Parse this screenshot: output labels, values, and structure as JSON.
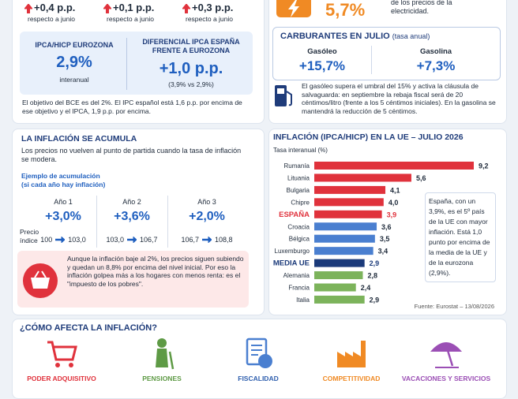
{
  "top_changes": [
    {
      "value": "+0,4 p.p.",
      "label": "respecto a junio"
    },
    {
      "value": "+0,1 p.p.",
      "label": "respecto a junio"
    },
    {
      "value": "+0,3 p.p.",
      "label": "respecto a junio"
    }
  ],
  "electricity": {
    "value": "5,7%",
    "label": "de los precios de la electricidad."
  },
  "eurozone": {
    "title": "IPCA/HICP EUROZONA",
    "value": "2,9%",
    "label": "interanual"
  },
  "differential": {
    "title": "DIFERENCIAL IPCA ESPAÑA FRENTE A EUROZONA",
    "value": "+1,0 p.p.",
    "label": "(3,9% vs 2,9%)"
  },
  "ecb_note": "El objetivo del BCE es del 2%. El IPC español está 1,6 p.p. por encima de ese objetivo y el IPCA, 1,9 p.p. por encima.",
  "fuel": {
    "title": "CARBURANTES EN JULIO",
    "subtitle": "(tasa anual)",
    "items": [
      {
        "name": "Gasóleo",
        "value": "+15,7%"
      },
      {
        "name": "Gasolina",
        "value": "+7,3%"
      }
    ],
    "note": "El gasóleo supera el umbral del 15% y activa la cláusula de salvaguarda: en septiembre la rebaja fiscal será de 20 céntimos/litro (frente a los 5 céntimos iniciales). En la gasolina se mantendrá la reducción de 5 céntimos."
  },
  "accumulation": {
    "title": "LA INFLACIÓN SE ACUMULA",
    "intro": "Los precios no vuelven al punto de partida cuando la tasa de inflación se modera.",
    "example_title": "Ejemplo de acumulación",
    "example_subtitle": "(si cada año hay inflación)",
    "row_label": "Precio índice",
    "years": [
      {
        "name": "Año 1",
        "rate": "+3,0%",
        "from": "100",
        "to": "103,0"
      },
      {
        "name": "Año 2",
        "rate": "+3,6%",
        "from": "103,0",
        "to": "106,7"
      },
      {
        "name": "Año 3",
        "rate": "+2,0%",
        "from": "106,7",
        "to": "108,8"
      }
    ],
    "warning": "Aunque la inflación baje al 2%, los precios siguen subiendo y quedan un 8,8% por encima del nivel inicial. Por eso la inflación golpea más a los hogares con menos renta: es el \"impuesto de los pobres\"."
  },
  "chart_data": {
    "type": "bar",
    "orientation": "horizontal",
    "title": "INFLACIÓN (IPCA/HICP) EN LA UE – JULIO 2026",
    "subtitle": "Tasa interanual (%)",
    "categories": [
      "Rumanía",
      "Lituania",
      "Bulgaria",
      "Chipre",
      "ESPAÑA",
      "Croacia",
      "Bélgica",
      "Luxemburgo",
      "MEDIA UE",
      "Alemania",
      "Francia",
      "Italia"
    ],
    "values": [
      9.2,
      5.6,
      4.1,
      4.0,
      3.9,
      3.6,
      3.5,
      3.4,
      2.9,
      2.8,
      2.4,
      2.9
    ],
    "value_labels": [
      "9,2",
      "5,6",
      "4,1",
      "4,0",
      "3,9",
      "3,6",
      "3,5",
      "3,4",
      "2,9",
      "2,8",
      "2,4",
      "2,9"
    ],
    "colors": [
      "#e0323c",
      "#e0323c",
      "#e0323c",
      "#e0323c",
      "#e0323c",
      "#4a7fd0",
      "#4a7fd0",
      "#4a7fd0",
      "#1b3a7a",
      "#7cb35b",
      "#7cb35b",
      "#7cb35b"
    ],
    "highlight": [
      4,
      8
    ],
    "note": "España, con un 3,9%, es el 5º país de la UE con mayor inflación. Está 1,0 punto por encima de la media de la UE y de la eurozona (2,9%).",
    "source": "Fuente: Eurostat – 13/08/2026"
  },
  "impacts": {
    "title": "¿CÓMO AFECTA LA INFLACIÓN?",
    "items": [
      "PODER ADQUISITIVO",
      "PENSIONES",
      "FISCALIDAD",
      "COMPETITIVIDAD",
      "VACACIONES Y SERVICIOS"
    ]
  }
}
